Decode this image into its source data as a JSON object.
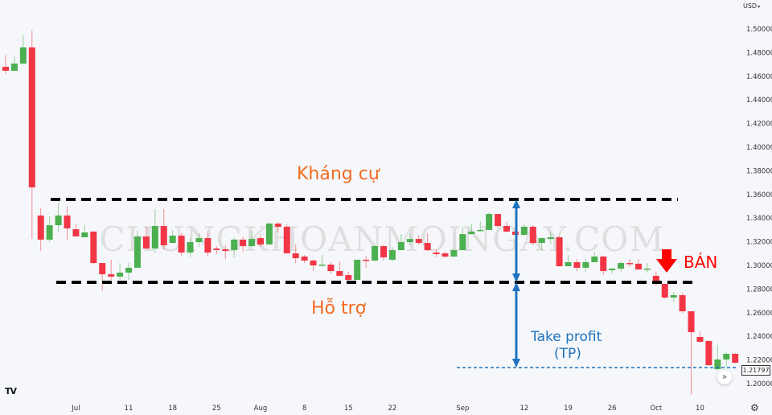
{
  "header": {
    "currency_label": "USD",
    "currency_icon": "chevron-down-icon"
  },
  "watermark": "CHUNGKHOANMOINGAY.COM",
  "logo": "TV",
  "colors": {
    "up": "#4caf50",
    "down": "#f23645",
    "resistance": "#000000",
    "support": "#000000",
    "label_orange": "#f26b21",
    "tp_blue": "#1e73be",
    "sell_red": "#ff0000",
    "background": "#f5f7fa"
  },
  "annotations": {
    "resistance_label": "Kháng cự",
    "support_label": "Hỗ trợ",
    "tp_label_line1": "Take profit",
    "tp_label_line2": "(TP)",
    "sell_label": "BÁN"
  },
  "chart_data": {
    "type": "candlestick",
    "yaxis": {
      "ticks": [
        "1.20000",
        "1.22000",
        "1.24000",
        "1.26000",
        "1.28000",
        "1.30000",
        "1.32000",
        "1.34000",
        "1.36000",
        "1.38000",
        "1.40000",
        "1.42000",
        "1.44000",
        "1.46000",
        "1.48000",
        "1.50000"
      ],
      "ylim": [
        1.19,
        1.51
      ],
      "position": "right"
    },
    "xaxis": {
      "labels": [
        {
          "text": "Jul",
          "candle": 8
        },
        {
          "text": "11",
          "candle": 14
        },
        {
          "text": "18",
          "candle": 19
        },
        {
          "text": "25",
          "candle": 24
        },
        {
          "text": "Aug",
          "candle": 29
        },
        {
          "text": "8",
          "candle": 34
        },
        {
          "text": "15",
          "candle": 39
        },
        {
          "text": "22",
          "candle": 44
        },
        {
          "text": "Sep",
          "candle": 52
        },
        {
          "text": "12",
          "candle": 59
        },
        {
          "text": "19",
          "candle": 64
        },
        {
          "text": "26",
          "candle": 69
        },
        {
          "text": "Oct",
          "candle": 74
        },
        {
          "text": "10",
          "candle": 79
        }
      ]
    },
    "last_price": "1.21797",
    "levels": {
      "resistance": 1.3558,
      "support": 1.2857,
      "take_profit": 1.2136
    },
    "fields": [
      "open",
      "high",
      "low",
      "close"
    ],
    "candles": [
      [
        1.468,
        1.478,
        1.462,
        1.4646
      ],
      [
        1.4646,
        1.4769,
        1.4646,
        1.4707
      ],
      [
        1.4707,
        1.4946,
        1.47,
        1.4844
      ],
      [
        1.4844,
        1.4986,
        1.3224,
        1.366
      ],
      [
        1.3422,
        1.3483,
        1.3122,
        1.3218
      ],
      [
        1.3218,
        1.3415,
        1.3197,
        1.334
      ],
      [
        1.334,
        1.353,
        1.3286,
        1.3422
      ],
      [
        1.3422,
        1.3497,
        1.3211,
        1.3313
      ],
      [
        1.3306,
        1.3347,
        1.3245,
        1.3245
      ],
      [
        1.3238,
        1.334,
        1.3238,
        1.3279
      ],
      [
        1.3286,
        1.3286,
        1.3007,
        1.302
      ],
      [
        1.302,
        1.302,
        1.2789,
        1.2925
      ],
      [
        1.2925,
        1.3048,
        1.2878,
        1.2905
      ],
      [
        1.2905,
        1.302,
        1.2878,
        1.2939
      ],
      [
        1.2939,
        1.302,
        1.2878,
        1.298
      ],
      [
        1.298,
        1.3293,
        1.298,
        1.3245
      ],
      [
        1.3245,
        1.3327,
        1.3136,
        1.3143
      ],
      [
        1.3143,
        1.3476,
        1.3109,
        1.3333
      ],
      [
        1.3333,
        1.3476,
        1.3136,
        1.317
      ],
      [
        1.319,
        1.33,
        1.319,
        1.3252
      ],
      [
        1.3252,
        1.3272,
        1.3075,
        1.3109
      ],
      [
        1.3109,
        1.3231,
        1.3068,
        1.3197
      ],
      [
        1.3197,
        1.3272,
        1.3156,
        1.3231
      ],
      [
        1.3231,
        1.3293,
        1.3075,
        1.3109
      ],
      [
        1.3143,
        1.3163,
        1.3095,
        1.313
      ],
      [
        1.3136,
        1.317,
        1.3054,
        1.3122
      ],
      [
        1.313,
        1.3231,
        1.3068,
        1.3218
      ],
      [
        1.3218,
        1.3245,
        1.3116,
        1.3163
      ],
      [
        1.3163,
        1.3293,
        1.3156,
        1.3224
      ],
      [
        1.3231,
        1.3265,
        1.3156,
        1.3177
      ],
      [
        1.3177,
        1.3367,
        1.3177,
        1.3354
      ],
      [
        1.3354,
        1.3367,
        1.3279,
        1.3327
      ],
      [
        1.3327,
        1.3347,
        1.3102,
        1.3102
      ],
      [
        1.3102,
        1.3177,
        1.302,
        1.3061
      ],
      [
        1.3075,
        1.3088,
        1.302,
        1.3041
      ],
      [
        1.3041,
        1.3048,
        1.2952,
        1.3
      ],
      [
        1.3,
        1.3088,
        1.3,
        1.3007
      ],
      [
        1.3007,
        1.3027,
        1.2932,
        1.2952
      ],
      [
        1.2952,
        1.3034,
        1.2905,
        1.2912
      ],
      [
        1.2918,
        1.2946,
        1.2864,
        1.2878
      ],
      [
        1.2878,
        1.3048,
        1.2878,
        1.3048
      ],
      [
        1.3048,
        1.3082,
        1.298,
        1.3041
      ],
      [
        1.3041,
        1.317,
        1.3034,
        1.3163
      ],
      [
        1.3163,
        1.3177,
        1.3041,
        1.3068
      ],
      [
        1.3048,
        1.3156,
        1.3034,
        1.3129
      ],
      [
        1.3129,
        1.3265,
        1.3129,
        1.3197
      ],
      [
        1.3197,
        1.3272,
        1.317,
        1.3224
      ],
      [
        1.3224,
        1.3258,
        1.317,
        1.319
      ],
      [
        1.319,
        1.3272,
        1.3122,
        1.3129
      ],
      [
        1.3109,
        1.3136,
        1.3068,
        1.3095
      ],
      [
        1.3102,
        1.3116,
        1.3061,
        1.3075
      ],
      [
        1.3075,
        1.315,
        1.3068,
        1.3129
      ],
      [
        1.3129,
        1.332,
        1.3129,
        1.3265
      ],
      [
        1.3265,
        1.3354,
        1.3258,
        1.3286
      ],
      [
        1.3293,
        1.3374,
        1.3293,
        1.33
      ],
      [
        1.33,
        1.3449,
        1.33,
        1.3435
      ],
      [
        1.3435,
        1.3435,
        1.332,
        1.3333
      ],
      [
        1.3333,
        1.3374,
        1.3279,
        1.3286
      ],
      [
        1.3286,
        1.332,
        1.3258,
        1.3259
      ],
      [
        1.3259,
        1.3347,
        1.3252,
        1.3327
      ],
      [
        1.3327,
        1.334,
        1.317,
        1.319
      ],
      [
        1.319,
        1.3238,
        1.3129,
        1.3231
      ],
      [
        1.3224,
        1.3279,
        1.3184,
        1.3238
      ],
      [
        1.3238,
        1.3252,
        1.2993,
        1.2993
      ],
      [
        1.2993,
        1.3088,
        1.2993,
        1.3027
      ],
      [
        1.3027,
        1.3054,
        1.2952,
        1.298
      ],
      [
        1.298,
        1.3054,
        1.2946,
        1.3027
      ],
      [
        1.3027,
        1.3116,
        1.3027,
        1.3075
      ],
      [
        1.3075,
        1.3082,
        1.2918,
        1.2952
      ],
      [
        1.2959,
        1.298,
        1.2932,
        1.2973
      ],
      [
        1.2973,
        1.3034,
        1.2939,
        1.302
      ],
      [
        1.302,
        1.3054,
        1.2986,
        1.3014
      ],
      [
        1.3014,
        1.3054,
        1.2959,
        1.2966
      ],
      [
        1.2966,
        1.302,
        1.2939,
        1.2973
      ],
      [
        1.2912,
        1.2946,
        1.283,
        1.2844
      ],
      [
        1.2844,
        1.2844,
        1.2721,
        1.2728
      ],
      [
        1.2728,
        1.2776,
        1.2694,
        1.2748
      ],
      [
        1.2748,
        1.2769,
        1.2599,
        1.2612
      ],
      [
        1.2612,
        1.2612,
        1.191,
        1.2435
      ],
      [
        1.2395,
        1.2442,
        1.2347,
        1.2354
      ],
      [
        1.2361,
        1.2367,
        1.215,
        1.2156
      ],
      [
        1.2122,
        1.2327,
        1.2109,
        1.2204
      ],
      [
        1.2204,
        1.2272,
        1.2143,
        1.2252
      ],
      [
        1.2252,
        1.2259,
        1.217,
        1.2177
      ]
    ]
  }
}
